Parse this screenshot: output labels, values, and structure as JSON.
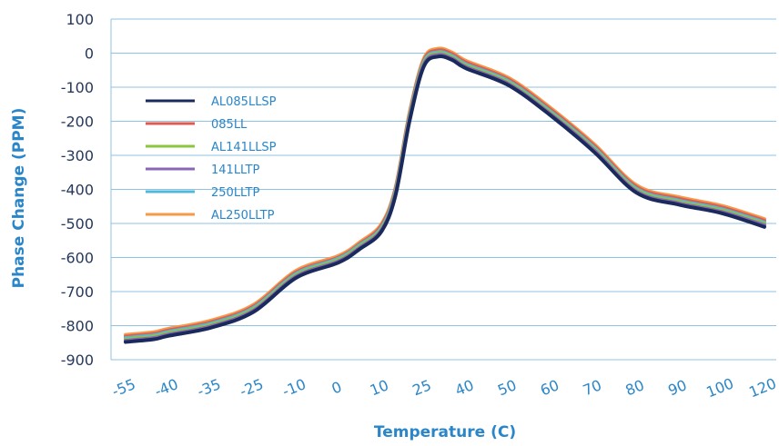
{
  "chart_data": {
    "type": "line",
    "title": "",
    "xlabel": "Temperature (C)",
    "ylabel": "Phase Change (PPM)",
    "ylim": [
      -900,
      100
    ],
    "yticks": [
      100,
      0,
      -100,
      -200,
      -300,
      -400,
      -500,
      -600,
      -700,
      -800,
      -900
    ],
    "xtick_labels": [
      "-55",
      "-40",
      "-35",
      "-25",
      "-10",
      "0",
      "10",
      "25",
      "40",
      "50",
      "60",
      "70",
      "80",
      "90",
      "100",
      "120"
    ],
    "grid": true,
    "legend_position": "upper-left",
    "x": [
      "-55",
      "-45",
      "-40",
      "-35",
      "-25",
      "-10",
      "0",
      "5",
      "10",
      "15",
      "20",
      "25",
      "30",
      "35",
      "40",
      "50",
      "60",
      "70",
      "80",
      "90",
      "100",
      "120"
    ],
    "series": [
      {
        "name": "AL085LLSP",
        "color": "#1b2a5c",
        "values": [
          -848,
          -840,
          -830,
          -806,
          -760,
          -660,
          -615,
          -575,
          -525,
          -420,
          -200,
          -40,
          -10,
          -20,
          -45,
          -95,
          -185,
          -290,
          -410,
          -445,
          -470,
          -510
        ]
      },
      {
        "name": "085LL",
        "color": "#e05a52",
        "values": [
          -832,
          -824,
          -814,
          -790,
          -744,
          -644,
          -600,
          -560,
          -508,
          -402,
          -180,
          -22,
          8,
          -3,
          -28,
          -78,
          -168,
          -272,
          -393,
          -428,
          -453,
          -492
        ]
      },
      {
        "name": "AL141LLSP",
        "color": "#8cc63f",
        "values": [
          -840,
          -832,
          -822,
          -798,
          -752,
          -652,
          -607,
          -567,
          -517,
          -411,
          -190,
          -31,
          -1,
          -12,
          -37,
          -87,
          -177,
          -281,
          -402,
          -437,
          -462,
          -501
        ]
      },
      {
        "name": "141LLTP",
        "color": "#8a67b4",
        "values": [
          -844,
          -836,
          -826,
          -802,
          -756,
          -656,
          -611,
          -571,
          -521,
          -415,
          -195,
          -35,
          -5,
          -16,
          -41,
          -91,
          -181,
          -285,
          -406,
          -441,
          -466,
          -505
        ]
      },
      {
        "name": "250LLTP",
        "color": "#52b8d8",
        "values": [
          -836,
          -828,
          -818,
          -794,
          -748,
          -648,
          -603,
          -563,
          -513,
          -406,
          -185,
          -27,
          3,
          -8,
          -33,
          -83,
          -173,
          -277,
          -398,
          -433,
          -458,
          -497
        ]
      },
      {
        "name": "AL250LLTP",
        "color": "#f59a4a",
        "values": [
          -827,
          -819,
          -809,
          -785,
          -739,
          -639,
          -595,
          -555,
          -503,
          -397,
          -175,
          -17,
          13,
          2,
          -23,
          -73,
          -163,
          -267,
          -388,
          -423,
          -448,
          -487
        ]
      }
    ]
  }
}
